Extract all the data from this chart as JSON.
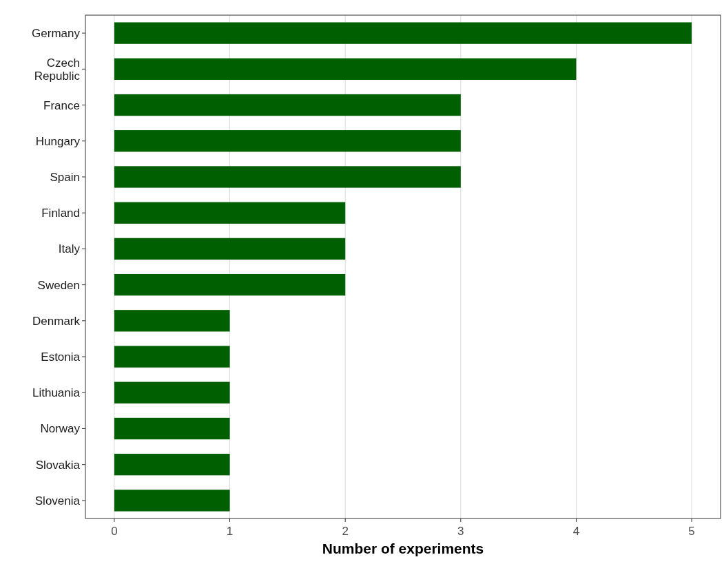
{
  "chart_data": {
    "type": "bar",
    "orientation": "horizontal",
    "xlabel": "Number of experiments",
    "categories": [
      "Germany",
      "Czech\nRepublic",
      "France",
      "Hungary",
      "Spain",
      "Finland",
      "Italy",
      "Sweden",
      "Denmark",
      "Estonia",
      "Lithuania",
      "Norway",
      "Slovakia",
      "Slovenia"
    ],
    "values": [
      5,
      4,
      3,
      3,
      3,
      2,
      2,
      2,
      1,
      1,
      1,
      1,
      1,
      1
    ],
    "color": "#005f00",
    "xlim": [
      -0.25,
      5.25
    ],
    "xticks": [
      0,
      1,
      2,
      3,
      4,
      5
    ],
    "grid": "x"
  }
}
